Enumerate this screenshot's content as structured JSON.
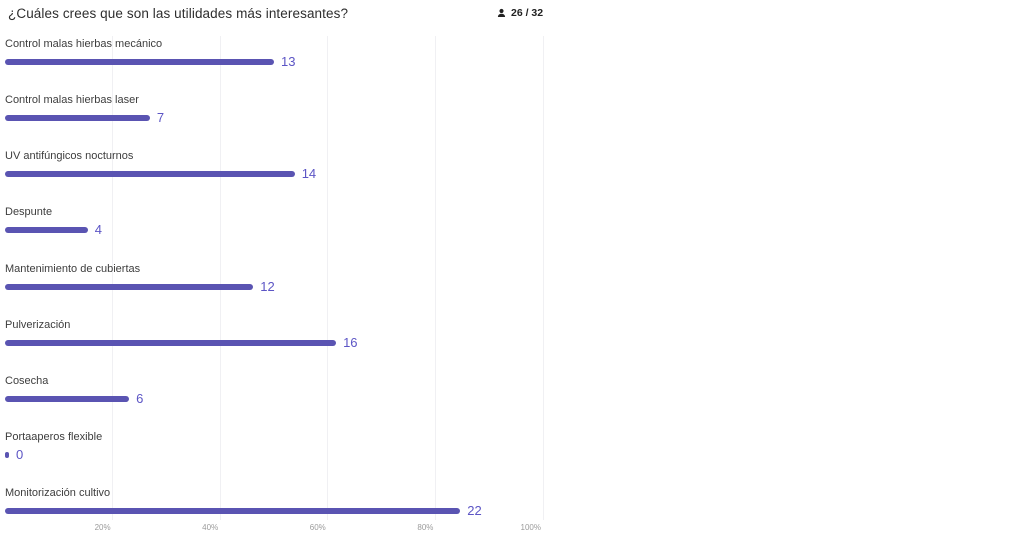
{
  "header": {
    "title": "¿Cuáles crees que son las utilidades más interesantes?",
    "respondents": "26 / 32"
  },
  "chart_data": {
    "type": "bar",
    "orientation": "horizontal",
    "title": "¿Cuáles crees que son las utilidades más interesantes?",
    "categories": [
      "Control malas hierbas mecánico",
      "Control malas hierbas laser",
      "UV antifúngicos nocturnos",
      "Despunte",
      "Mantenimiento de cubiertas",
      "Pulverización",
      "Cosecha",
      "Portaaperos flexible",
      "Monitorización cultivo"
    ],
    "values": [
      13,
      7,
      14,
      4,
      12,
      16,
      6,
      0,
      22
    ],
    "max_scale": 26,
    "xlim": [
      0,
      100
    ],
    "x_tick_labels": [
      "20%",
      "40%",
      "60%",
      "80%",
      "100%"
    ],
    "x_tick_positions": [
      20,
      40,
      60,
      80,
      100
    ],
    "grid": true,
    "legend": "none",
    "xlabel": "",
    "ylabel": ""
  },
  "colors": {
    "bar": "#5a54b2",
    "value_text": "#5c55c5",
    "grid": "#f0f0f3",
    "label_text": "#3d3d3d",
    "tick_text": "#9b9b9b",
    "title_text": "#2e2e2e"
  }
}
